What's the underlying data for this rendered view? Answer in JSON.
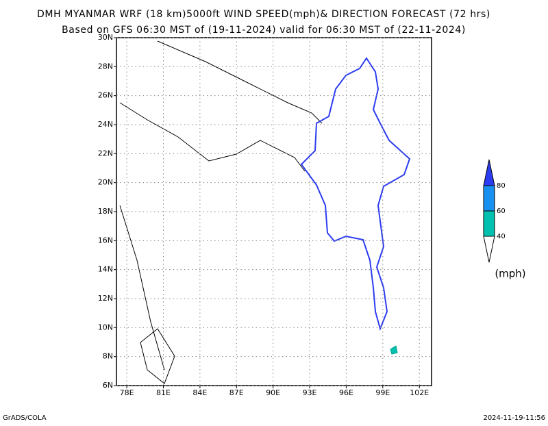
{
  "header": {
    "title": "DMH MYANMAR WRF (18 km)5000ft WIND SPEED(mph)& DIRECTION FORECAST (72 hrs)",
    "subtitle": "Based on GFS 06:30 MST of (19-11-2024) valid for 06:30 MST of (22-11-2024)"
  },
  "map": {
    "lonlim": [
      77.15,
      103
    ],
    "latlim": [
      6,
      30
    ],
    "xticks": [
      {
        "value": 78,
        "label": "78E"
      },
      {
        "value": 81,
        "label": "81E"
      },
      {
        "value": 84,
        "label": "84E"
      },
      {
        "value": 87,
        "label": "87E"
      },
      {
        "value": 90,
        "label": "90E"
      },
      {
        "value": 93,
        "label": "93E"
      },
      {
        "value": 96,
        "label": "96E"
      },
      {
        "value": 99,
        "label": "99E"
      },
      {
        "value": 102,
        "label": "102E"
      }
    ],
    "yticks": [
      {
        "value": 6,
        "label": "6N"
      },
      {
        "value": 8,
        "label": "8N"
      },
      {
        "value": 10,
        "label": "10N"
      },
      {
        "value": 12,
        "label": "12N"
      },
      {
        "value": 14,
        "label": "14N"
      },
      {
        "value": 16,
        "label": "16N"
      },
      {
        "value": 18,
        "label": "18N"
      },
      {
        "value": 20,
        "label": "20N"
      },
      {
        "value": 22,
        "label": "22N"
      },
      {
        "value": 24,
        "label": "24N"
      },
      {
        "value": 26,
        "label": "26N"
      },
      {
        "value": 28,
        "label": "28N"
      },
      {
        "value": 30,
        "label": "30N"
      }
    ],
    "grid": true
  },
  "colorbar": {
    "levels": [
      40,
      60,
      80
    ],
    "colors": [
      "#ffffff",
      "#00c0b0",
      "#1890f0",
      "#2c3cf0"
    ],
    "unit": "(mph)"
  },
  "footer": {
    "left": "GrADS/COLA",
    "right": "2024-11-19-11:56"
  }
}
